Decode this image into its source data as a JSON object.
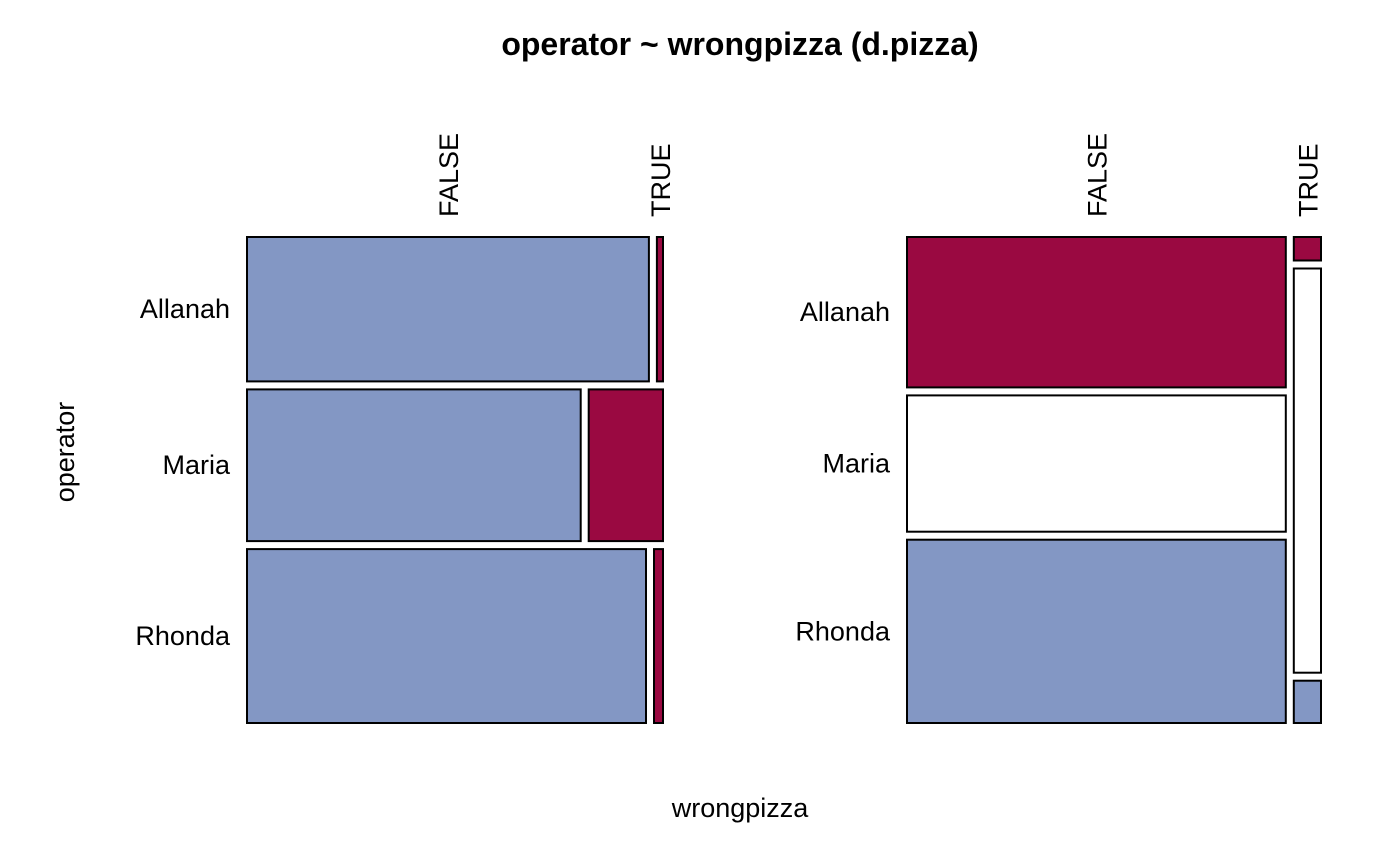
{
  "chart_data": {
    "type": "mosaic",
    "title": "operator ~ wrongpizza (d.pizza)",
    "xlabel": "wrongpizza",
    "ylabel": "operator",
    "rows": [
      "Allanah",
      "Maria",
      "Rhonda"
    ],
    "columns": [
      "FALSE",
      "TRUE"
    ],
    "colors": {
      "blue": "#8397C4",
      "red": "#9A0941",
      "white": "#FFFFFF",
      "border": "#000000"
    },
    "panels": [
      {
        "name": "operator-conditional",
        "description_of_split": "rows first, then columns within row",
        "row_shares": [
          0.298,
          0.313,
          0.359
        ],
        "cells": [
          {
            "row": "Allanah",
            "column": "FALSE",
            "share": 0.985,
            "color": "blue"
          },
          {
            "row": "Allanah",
            "column": "TRUE",
            "share": 0.015,
            "color": "red"
          },
          {
            "row": "Maria",
            "column": "FALSE",
            "share": 0.818,
            "color": "blue"
          },
          {
            "row": "Maria",
            "column": "TRUE",
            "share": 0.182,
            "color": "red"
          },
          {
            "row": "Rhonda",
            "column": "FALSE",
            "share": 0.978,
            "color": "blue"
          },
          {
            "row": "Rhonda",
            "column": "TRUE",
            "share": 0.022,
            "color": "red"
          }
        ]
      },
      {
        "name": "wrongpizza-conditional",
        "description_of_split": "columns first, then rows within column",
        "column_shares": [
          0.933,
          0.067
        ],
        "cells": [
          {
            "column": "FALSE",
            "row": "Allanah",
            "share": 0.32,
            "color": "red"
          },
          {
            "column": "FALSE",
            "row": "Maria",
            "share": 0.29,
            "color": "white"
          },
          {
            "column": "FALSE",
            "row": "Rhonda",
            "share": 0.39,
            "color": "blue"
          },
          {
            "column": "TRUE",
            "row": "Allanah",
            "share": 0.05,
            "color": "red"
          },
          {
            "column": "TRUE",
            "row": "Maria",
            "share": 0.86,
            "color": "white"
          },
          {
            "column": "TRUE",
            "row": "Rhonda",
            "share": 0.09,
            "color": "blue"
          }
        ]
      }
    ]
  }
}
